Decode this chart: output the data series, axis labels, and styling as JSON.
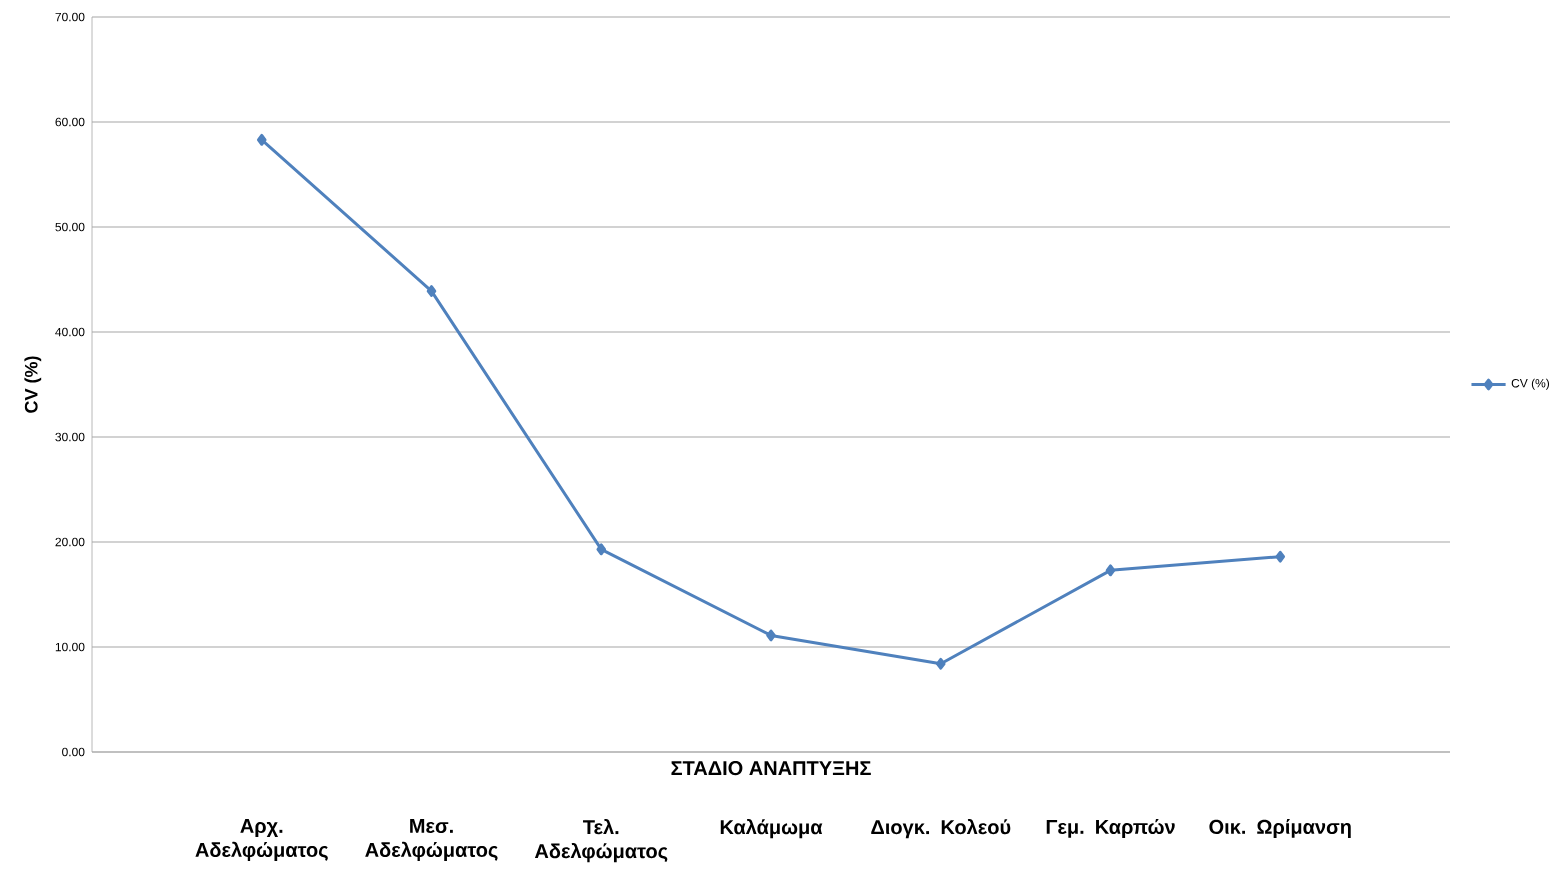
{
  "chart_data": {
    "type": "line",
    "xlabel": "ΣΤΑΔΙΟ ΑΝΑΠΤΥΞΗΣ",
    "ylabel": "CV (%)",
    "categories": [
      "Αρχ. Αδελφώματος",
      "Μεσ. Αδελφώματος",
      "Τελ. Αδελφώματος",
      "Καλάμωμα",
      "Διογκ. Κολεού",
      "Γεμ. Καρπών",
      "Οικ. Ωρίμανση"
    ],
    "series": [
      {
        "name": "CV (%)",
        "color": "#4f81bd",
        "values": [
          58.3,
          43.9,
          19.3,
          11.1,
          8.4,
          17.3,
          18.6
        ]
      }
    ],
    "ylim": [
      0,
      70
    ],
    "yticks": [
      {
        "value": 0,
        "label": "0.00"
      },
      {
        "value": 10,
        "label": "10.00"
      },
      {
        "value": 20,
        "label": "20.00"
      },
      {
        "value": 30,
        "label": "30.00"
      },
      {
        "value": 40,
        "label": "40.00"
      },
      {
        "value": 50,
        "label": "50.00"
      },
      {
        "value": 60,
        "label": "60.00"
      },
      {
        "value": 70,
        "label": "70.00"
      }
    ],
    "grid": "y",
    "legend": "right",
    "marker": "diamond",
    "line_style": "solid"
  }
}
